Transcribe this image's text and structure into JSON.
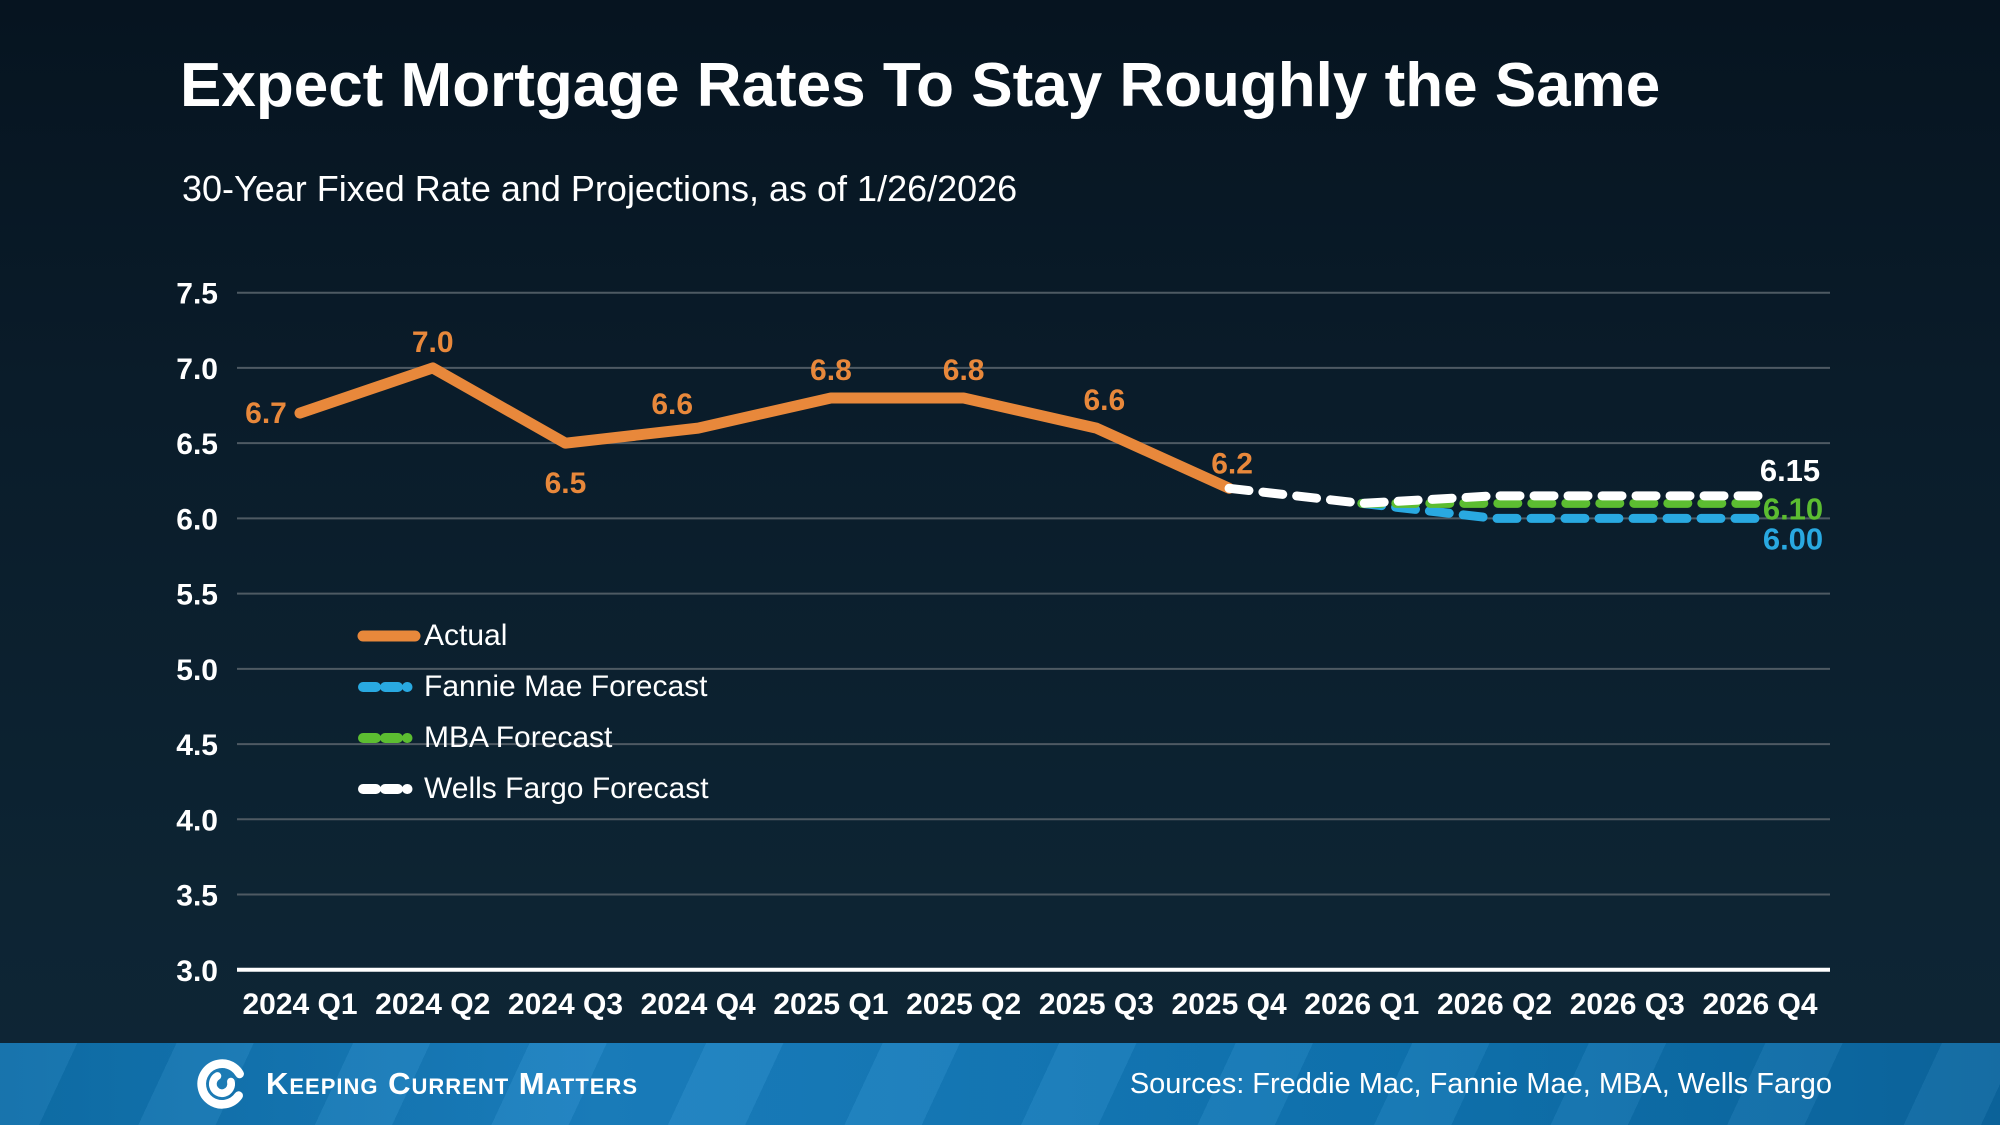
{
  "chart_data": {
    "type": "line",
    "title": "Expect Mortgage Rates To Stay Roughly the Same",
    "subtitle": "30-Year Fixed Rate and Projections, as of 1/26/2026",
    "categories": [
      "2024 Q1",
      "2024 Q2",
      "2024 Q3",
      "2024 Q4",
      "2025 Q1",
      "2025 Q2",
      "2025 Q3",
      "2025 Q4",
      "2026 Q1",
      "2026 Q2",
      "2026 Q3",
      "2026 Q4"
    ],
    "ylim": [
      3.0,
      7.5
    ],
    "yticks": [
      7.5,
      7.0,
      6.5,
      6.0,
      5.5,
      5.0,
      4.5,
      4.0,
      3.5,
      3.0
    ],
    "grid": true,
    "legend_position": "center-left",
    "series": [
      {
        "name": "Actual",
        "color": "#E8883B",
        "style": "solid",
        "x": [
          0,
          1,
          2,
          3,
          4,
          5,
          6,
          7
        ],
        "values": [
          6.7,
          7.0,
          6.5,
          6.6,
          6.8,
          6.8,
          6.6,
          6.2
        ],
        "labels": [
          "6.7",
          "7.0",
          "6.5",
          "6.6",
          "6.8",
          "6.8",
          "6.6",
          "6.2"
        ],
        "label_offsets": [
          [
            -34,
            10
          ],
          [
            0,
            -16
          ],
          [
            0,
            50
          ],
          [
            -26,
            -14
          ],
          [
            0,
            -18
          ],
          [
            0,
            -18
          ],
          [
            8,
            -18
          ],
          [
            3,
            -15
          ]
        ]
      },
      {
        "name": "Fannie Mae Forecast",
        "color": "#29A9E1",
        "style": "dashed",
        "x": [
          8,
          9,
          10,
          11
        ],
        "values": [
          6.1,
          6.0,
          6.0,
          6.0
        ],
        "end_label": "6.00",
        "end_label_offset": [
          33,
          31
        ]
      },
      {
        "name": "MBA Forecast",
        "color": "#5CBD31",
        "style": "dashed",
        "x": [
          8,
          9,
          10,
          11
        ],
        "values": [
          6.1,
          6.1,
          6.1,
          6.1
        ],
        "end_label": "6.10",
        "end_label_offset": [
          33,
          16
        ]
      },
      {
        "name": "Wells Fargo Forecast",
        "color": "#FFFFFF",
        "style": "dashed",
        "x": [
          7,
          8,
          9,
          10,
          11
        ],
        "values": [
          6.2,
          6.1,
          6.15,
          6.15,
          6.15
        ],
        "end_label": "6.15",
        "end_label_offset": [
          30,
          -15
        ]
      }
    ]
  },
  "footer": {
    "brand": "Keeping Current Matters",
    "sources": "Sources: Freddie Mac, Fannie Mae, MBA, Wells Fargo",
    "bar_color": "#0F74B2"
  },
  "colors": {
    "background_top": "#061420",
    "background_bottom": "#0E2636",
    "gridline": "#4E5A63",
    "axis_line": "#FFFFFF",
    "text": "#FFFFFF",
    "actual_orange": "#E8883B",
    "fannie_blue": "#29A9E1",
    "mba_green": "#5CBD31",
    "wells_white": "#FFFFFF"
  }
}
